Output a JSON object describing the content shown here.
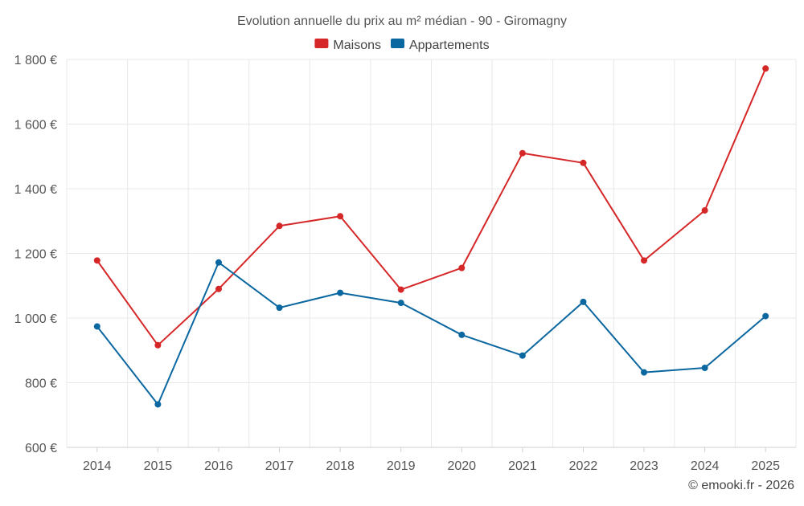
{
  "chart_data": {
    "type": "line",
    "title": "Evolution annuelle du prix au m² médian - 90 - Giromagny",
    "categories": [
      "2014",
      "2015",
      "2016",
      "2017",
      "2018",
      "2019",
      "2020",
      "2021",
      "2022",
      "2023",
      "2024",
      "2025"
    ],
    "series": [
      {
        "name": "Maisons",
        "color": "#d62728",
        "values": [
          1178,
          916,
          1090,
          1285,
          1315,
          1088,
          1155,
          1510,
          1480,
          1178,
          1333,
          1772
        ]
      },
      {
        "name": "Appartements",
        "color": "#0b67a0",
        "values": [
          974,
          733,
          1172,
          1032,
          1078,
          1047,
          948,
          884,
          1050,
          832,
          846,
          1006
        ]
      }
    ],
    "y_ticks": [
      {
        "value": 600,
        "label": "600 €"
      },
      {
        "value": 800,
        "label": "800 €"
      },
      {
        "value": 1000,
        "label": "1 000 €"
      },
      {
        "value": 1200,
        "label": "1 200 €"
      },
      {
        "value": 1400,
        "label": "1 400 €"
      },
      {
        "value": 1600,
        "label": "1 600 €"
      },
      {
        "value": 1800,
        "label": "1 800 €"
      }
    ],
    "ylim": [
      600,
      1800
    ],
    "xlabel": "",
    "ylabel": "",
    "legend_position": "top-center",
    "grid": true
  },
  "credit": "© emooki.fr - 2026"
}
